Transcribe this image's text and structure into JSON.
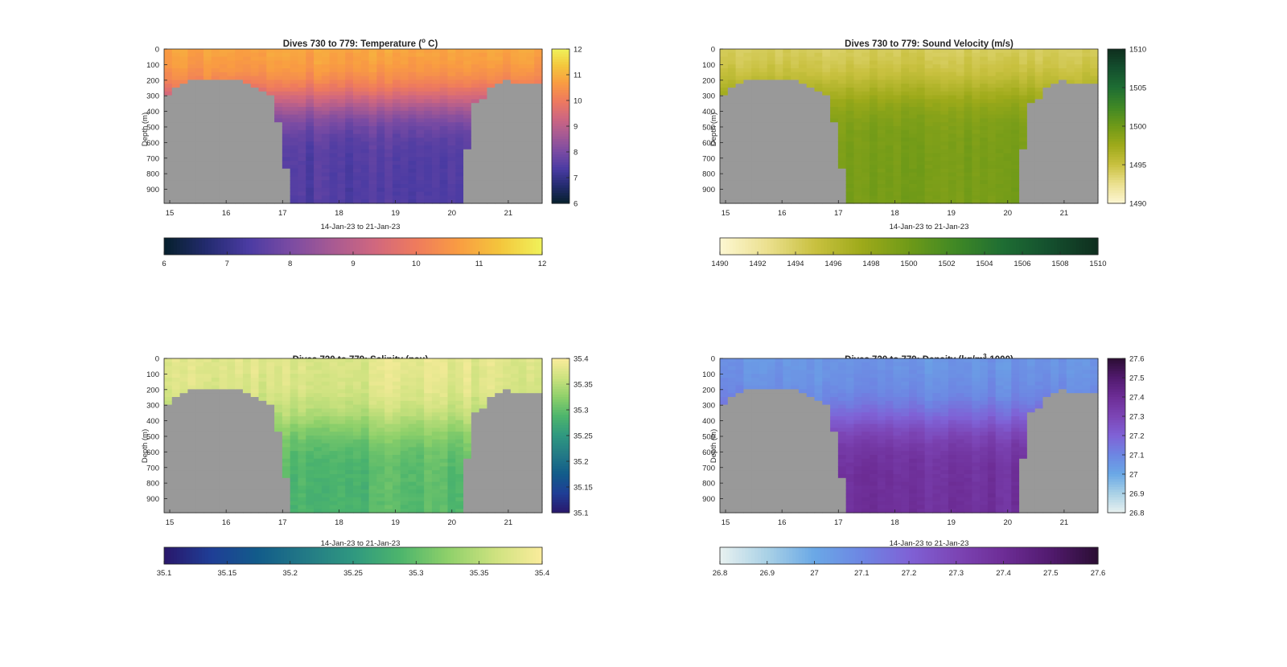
{
  "figure": {
    "date_range_label": "14-Jan-23 to 21-Jan-23",
    "depth_label": "Depth (m)",
    "land_color": "#999999"
  },
  "chart_data": [
    {
      "type": "heatmap",
      "title": "Dives 730 to 779: Temperature (",
      "title_degree": "o",
      "title_suffix": " C)",
      "xlabel": "14-Jan-23 to 21-Jan-23",
      "ylabel": "Depth (m)",
      "x_ticks": [
        "15",
        "16",
        "17",
        "18",
        "19",
        "20",
        "21"
      ],
      "x_tick_values": [
        15,
        16,
        17,
        18,
        19,
        20,
        21
      ],
      "xlim": [
        14.9,
        21.6
      ],
      "y_ticks": [
        "0",
        "100",
        "200",
        "300",
        "400",
        "500",
        "600",
        "700",
        "800",
        "900"
      ],
      "ylim": [
        0,
        990
      ],
      "y_reversed": true,
      "colormap": [
        "#06202c",
        "#232b6e",
        "#4a3ba3",
        "#7a4ba3",
        "#a75a93",
        "#d0677f",
        "#ef7b5d",
        "#f99c42",
        "#f4c63c",
        "#f0f25a"
      ],
      "clim": [
        6,
        12
      ],
      "colorbar_ticks": [
        "6",
        "7",
        "8",
        "9",
        "10",
        "11",
        "12"
      ],
      "colorbar_values": [
        6,
        7,
        8,
        9,
        10,
        11,
        12
      ],
      "surface_value": 10.9,
      "deep_value": 7.4,
      "transition_depth": 330,
      "noise": 0.35
    },
    {
      "type": "heatmap",
      "title": "Dives 730 to 779: Sound Velocity (m/s)",
      "xlabel": "14-Jan-23 to 21-Jan-23",
      "ylabel": "Depth (m)",
      "x_ticks": [
        "15",
        "16",
        "17",
        "18",
        "19",
        "20",
        "21"
      ],
      "x_tick_values": [
        15,
        16,
        17,
        18,
        19,
        20,
        21
      ],
      "xlim": [
        14.9,
        21.6
      ],
      "y_ticks": [
        "0",
        "100",
        "200",
        "300",
        "400",
        "500",
        "600",
        "700",
        "800",
        "900"
      ],
      "ylim": [
        0,
        990
      ],
      "y_reversed": true,
      "colormap": [
        "#fdf7d2",
        "#ebe08f",
        "#c9c140",
        "#9eaa1a",
        "#6f9a18",
        "#3f8825",
        "#1e6d33",
        "#144f2e",
        "#0f2e1e"
      ],
      "clim": [
        1490,
        1510
      ],
      "colorbar_ticks": [
        "1490",
        "1495",
        "1500",
        "1505",
        "1510"
      ],
      "colorbar_values": [
        1490,
        1495,
        1500,
        1505,
        1510
      ],
      "colorbar_h_ticks": [
        "1490",
        "1492",
        "1494",
        "1496",
        "1498",
        "1500",
        "1502",
        "1504",
        "1506",
        "1508",
        "1510"
      ],
      "colorbar_h_values": [
        1490,
        1492,
        1494,
        1496,
        1498,
        1500,
        1502,
        1504,
        1506,
        1508,
        1510
      ],
      "surface_value": 1493.8,
      "deep_value": 1499.5,
      "transition_depth": 260,
      "noise": 0.9
    },
    {
      "type": "heatmap",
      "title": "Dives 730 to 779: Salinity (psu)",
      "xlabel": "14-Jan-23 to 21-Jan-23",
      "ylabel": "Depth (m)",
      "x_ticks": [
        "15",
        "16",
        "17",
        "18",
        "19",
        "20",
        "21"
      ],
      "x_tick_values": [
        15,
        16,
        17,
        18,
        19,
        20,
        21
      ],
      "xlim": [
        14.9,
        21.6
      ],
      "y_ticks": [
        "0",
        "100",
        "200",
        "300",
        "400",
        "500",
        "600",
        "700",
        "800",
        "900"
      ],
      "ylim": [
        0,
        990
      ],
      "y_reversed": true,
      "colormap": [
        "#29176b",
        "#1f3e96",
        "#125c8a",
        "#237a86",
        "#2f9880",
        "#4db56c",
        "#8ed06a",
        "#cde27f",
        "#fbec9c"
      ],
      "clim": [
        35.1,
        35.4
      ],
      "colorbar_ticks": [
        "35.1",
        "35.15",
        "35.2",
        "35.25",
        "35.3",
        "35.35",
        "35.4"
      ],
      "colorbar_values": [
        35.1,
        35.15,
        35.2,
        35.25,
        35.3,
        35.35,
        35.4
      ],
      "surface_value": 35.38,
      "deep_value": 35.29,
      "transition_depth": 420,
      "noise": 0.025
    },
    {
      "type": "heatmap",
      "title": "Dives 730 to 779: Density (kg/m",
      "title_power": "3",
      "title_suffix": "-1000)",
      "xlabel": "14-Jan-23 to 21-Jan-23",
      "ylabel": "Depth (m)",
      "x_ticks": [
        "15",
        "16",
        "17",
        "18",
        "19",
        "20",
        "21"
      ],
      "x_tick_values": [
        15,
        16,
        17,
        18,
        19,
        20,
        21
      ],
      "xlim": [
        14.9,
        21.6
      ],
      "y_ticks": [
        "0",
        "100",
        "200",
        "300",
        "400",
        "500",
        "600",
        "700",
        "800",
        "900"
      ],
      "ylim": [
        0,
        990
      ],
      "y_reversed": true,
      "colormap": [
        "#e8f1f0",
        "#a9d1e6",
        "#6aa8e6",
        "#6d86e3",
        "#7f62d6",
        "#7c45b5",
        "#6d2d96",
        "#511a6e",
        "#2b0e33"
      ],
      "clim": [
        26.8,
        27.6
      ],
      "colorbar_ticks": [
        "26.8",
        "26.9",
        "27",
        "27.1",
        "27.2",
        "27.3",
        "27.4",
        "27.5",
        "27.6"
      ],
      "colorbar_values": [
        26.8,
        26.9,
        27,
        27.1,
        27.2,
        27.3,
        27.4,
        27.5,
        27.6
      ],
      "surface_value": 27.05,
      "deep_value": 27.38,
      "transition_depth": 400,
      "noise": 0.05
    }
  ]
}
